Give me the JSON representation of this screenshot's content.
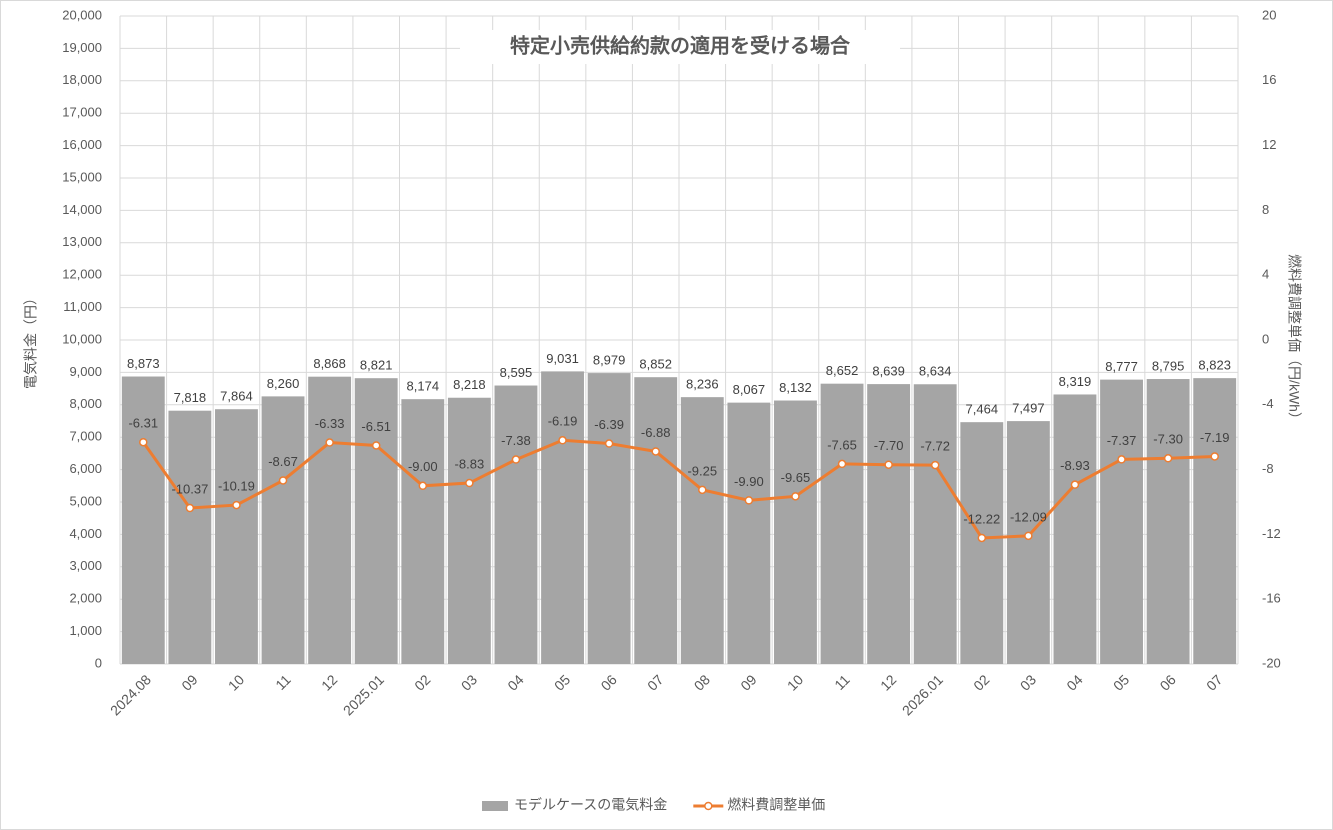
{
  "chart_data": {
    "type": "bar-line",
    "title": "特定小売供給約款の適用を受ける場合",
    "y_label": "電気料金（円）",
    "y2_label": "燃料費調整単価（円/kWh）",
    "categories": [
      "2024.08",
      "09",
      "10",
      "11",
      "12",
      "2025.01",
      "02",
      "03",
      "04",
      "05",
      "06",
      "07",
      "08",
      "09",
      "10",
      "11",
      "12",
      "2026.01",
      "02",
      "03",
      "04",
      "05",
      "06",
      "07"
    ],
    "series": [
      {
        "name": "モデルケースの電気料金",
        "type": "bar",
        "color": "#a5a5a5",
        "values": [
          8873,
          7818,
          7864,
          8260,
          8868,
          8821,
          8174,
          8218,
          8595,
          9031,
          8979,
          8852,
          8236,
          8067,
          8132,
          8652,
          8639,
          8634,
          7464,
          7497,
          8319,
          8777,
          8795,
          8823
        ],
        "value_labels": [
          "8,873",
          "7,818",
          "7,864",
          "8,260",
          "8,868",
          "8,821",
          "8,174",
          "8,218",
          "8,595",
          "9,031",
          "8,979",
          "8,852",
          "8,236",
          "8,067",
          "8,132",
          "8,652",
          "8,639",
          "8,634",
          "7,464",
          "7,497",
          "8,319",
          "8,777",
          "8,795",
          "8,823"
        ]
      },
      {
        "name": "燃料費調整単価",
        "type": "line",
        "axis": "y2",
        "color": "#ed7d31",
        "values": [
          -6.31,
          -10.37,
          -10.19,
          -8.67,
          -6.33,
          -6.51,
          -9.0,
          -8.83,
          -7.38,
          -6.19,
          -6.39,
          -6.88,
          -9.25,
          -9.9,
          -9.65,
          -7.65,
          -7.7,
          -7.72,
          -12.22,
          -12.09,
          -8.93,
          -7.37,
          -7.3,
          -7.19
        ],
        "value_labels": [
          "-6.31",
          "-10.37",
          "-10.19",
          "-8.67",
          "-6.33",
          "-6.51",
          "-9.00",
          "-8.83",
          "-7.38",
          "-6.19",
          "-6.39",
          "-6.88",
          "-9.25",
          "-9.90",
          "-9.65",
          "-7.65",
          "-7.70",
          "-7.72",
          "-12.22",
          "-12.09",
          "-8.93",
          "-7.37",
          "-7.30",
          "-7.19"
        ]
      }
    ],
    "ylim": [
      0,
      20000
    ],
    "yticks": [
      0,
      {
        "value": 1000,
        "label": "1,000"
      },
      {
        "value": 2000,
        "label": "2,000"
      },
      {
        "value": 3000,
        "label": "3,000"
      },
      {
        "value": 4000,
        "label": "4,000"
      },
      {
        "value": 5000,
        "label": "5,000"
      },
      {
        "value": 6000,
        "label": "6,000"
      },
      {
        "value": 7000,
        "label": "7,000"
      },
      {
        "value": 8000,
        "label": "8,000"
      },
      {
        "value": 9000,
        "label": "9,000"
      },
      {
        "value": 10000,
        "label": "10,000"
      },
      {
        "value": 11000,
        "label": "11,000"
      },
      {
        "value": 12000,
        "label": "12,000"
      },
      {
        "value": 13000,
        "label": "13,000"
      },
      {
        "value": 14000,
        "label": "14,000"
      },
      {
        "value": 15000,
        "label": "15,000"
      },
      {
        "value": 16000,
        "label": "16,000"
      },
      {
        "value": 17000,
        "label": "17,000"
      },
      {
        "value": 18000,
        "label": "18,000"
      },
      {
        "value": 19000,
        "label": "19,000"
      },
      {
        "value": 20000,
        "label": "20,000"
      }
    ],
    "y2lim": [
      -20,
      20
    ],
    "y2ticks": [
      -20,
      -16,
      -12,
      -8,
      -4,
      0,
      4,
      8,
      12,
      16,
      20
    ],
    "grid": true
  }
}
